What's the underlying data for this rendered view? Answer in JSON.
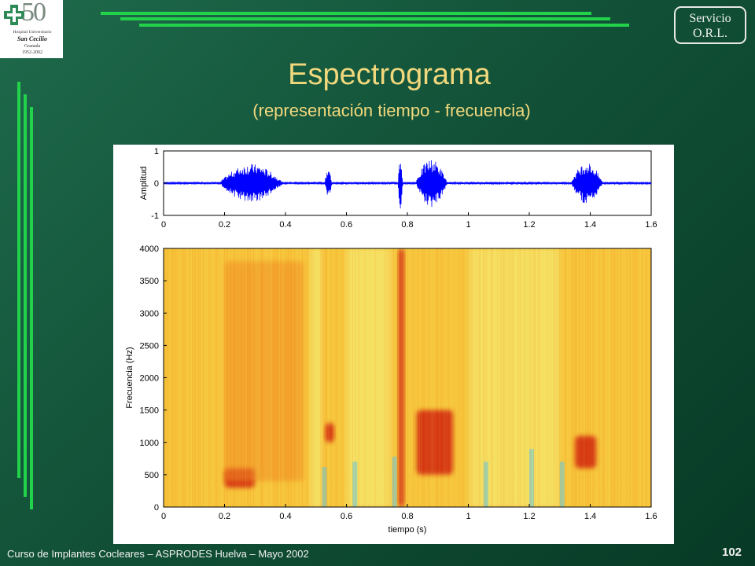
{
  "logo": {
    "number": "50",
    "line1": "Hospital Universitario",
    "line2": "San Cecilio",
    "line3": "Granada",
    "line4": "1952-2002"
  },
  "badge": {
    "line1": "Servicio",
    "line2": "O.R.L."
  },
  "title": "Espectrograma",
  "subtitle": "(representación tiempo - frecuencia)",
  "footer": "Curso de Implantes Cocleares – ASPRODES Huelva – Mayo 2002",
  "page_number": "102",
  "colors": {
    "background": "#125238",
    "title": "#f2d87c",
    "accent_lines": "#22d24a",
    "waveform": "#0000ff"
  },
  "chart_data": [
    {
      "type": "line",
      "ylabel": "Amplitud",
      "xlim": [
        0,
        1.6
      ],
      "ylim": [
        -1,
        1
      ],
      "xticks": [
        "0",
        "0.2",
        "0.4",
        "0.6",
        "0.8",
        "1",
        "1.2",
        "1.4",
        "1.6"
      ],
      "yticks": [
        "1",
        "0",
        "-1"
      ],
      "bursts": [
        {
          "start": 0.19,
          "end": 0.47,
          "peak": 0.6
        },
        {
          "start": 0.53,
          "end": 0.56,
          "peak": 0.5
        },
        {
          "start": 0.77,
          "end": 0.79,
          "peak": 0.85
        },
        {
          "start": 0.83,
          "end": 0.97,
          "peak": 0.75
        },
        {
          "start": 1.34,
          "end": 1.48,
          "peak": 0.65
        }
      ]
    },
    {
      "type": "heatmap",
      "xlabel": "tiempo (s)",
      "ylabel": "Frecuencia (Hz)",
      "xlim": [
        0,
        1.6
      ],
      "ylim": [
        0,
        4000
      ],
      "xticks": [
        "0",
        "0.2",
        "0.4",
        "0.6",
        "0.8",
        "1",
        "1.2",
        "1.4",
        "1.6"
      ],
      "yticks": [
        "0",
        "500",
        "1000",
        "1500",
        "2000",
        "2500",
        "3000",
        "3500",
        "4000"
      ],
      "colormap": [
        "#5fc8e8",
        "#f5f07a",
        "#f7c43a",
        "#f08a20",
        "#d2280f"
      ],
      "energy_regions": [
        {
          "t0": 0.2,
          "t1": 0.3,
          "f0": 300,
          "f1": 600,
          "level": 0.95
        },
        {
          "t0": 0.2,
          "t1": 0.46,
          "f0": 400,
          "f1": 3800,
          "level": 0.6
        },
        {
          "t0": 0.53,
          "t1": 0.56,
          "f0": 1000,
          "f1": 1300,
          "level": 0.9
        },
        {
          "t0": 0.77,
          "t1": 0.79,
          "f0": 0,
          "f1": 4000,
          "level": 1.0
        },
        {
          "t0": 0.83,
          "t1": 0.95,
          "f0": 500,
          "f1": 1500,
          "level": 1.0
        },
        {
          "t0": 1.35,
          "t1": 1.42,
          "f0": 600,
          "f1": 1100,
          "level": 0.9
        }
      ]
    }
  ]
}
